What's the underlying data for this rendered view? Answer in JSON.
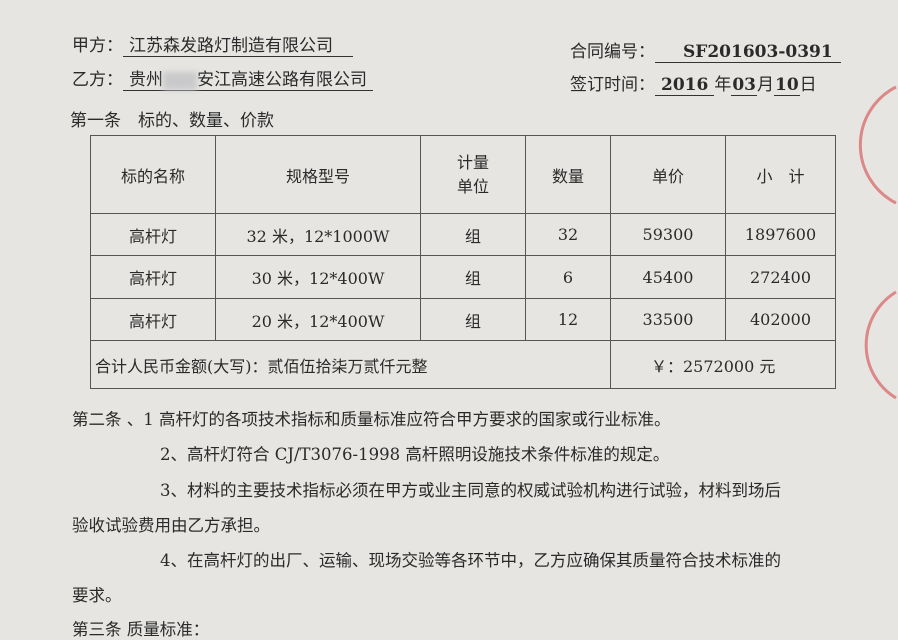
{
  "header": {
    "party_a_label": "甲方：",
    "party_a": "江苏森发路灯制造有限公司",
    "party_b_label": "乙方：",
    "party_b_prefix": "贵州",
    "party_b_suffix": "安江高速公路有限公司",
    "contract_no_label": "合同编号：",
    "contract_no": "SF201603-0391",
    "sign_label": "签订时间：",
    "year": "2016",
    "year_unit": "年",
    "month": "03",
    "month_unit": "月",
    "day": "10",
    "day_unit": "日"
  },
  "article1_title": "第一条　标的、数量、价款",
  "table": {
    "headers": [
      "标的名称",
      "规格型号",
      "计量\n单位",
      "数量",
      "单价",
      "小　计"
    ],
    "rows": [
      [
        "高杆灯",
        "32 米，12*1000W",
        "组",
        "32",
        "59300",
        "1897600"
      ],
      [
        "高杆灯",
        "30 米，12*400W",
        "组",
        "6",
        "45400",
        "272400"
      ],
      [
        "高杆灯",
        "20 米，12*400W",
        "组",
        "12",
        "33500",
        "402000"
      ]
    ],
    "total_label": "合计人民币金额(大写)：贰佰伍拾柒万贰仟元整",
    "total_value": "￥：2572000 元"
  },
  "article2": [
    "第二条 、1 高杆灯的各项技术指标和质量标准应符合甲方要求的国家或行业标准。",
    "2、高杆灯符合 CJ/T3076-1998 高杆照明设施技术条件标准的规定。",
    "3、材料的主要技术指标必须在甲方或业主同意的权威试验机构进行试验，材料到场后",
    "验收试验费用由乙方承担。",
    "4、在高杆灯的出厂、运输、现场交验等各环节中，乙方应确保其质量符合技术标准的",
    "要求。"
  ],
  "article3_title": "第三条 质量标准：",
  "colors": {
    "paper": "#e6e5e2",
    "stamp": "#d23c3c"
  }
}
